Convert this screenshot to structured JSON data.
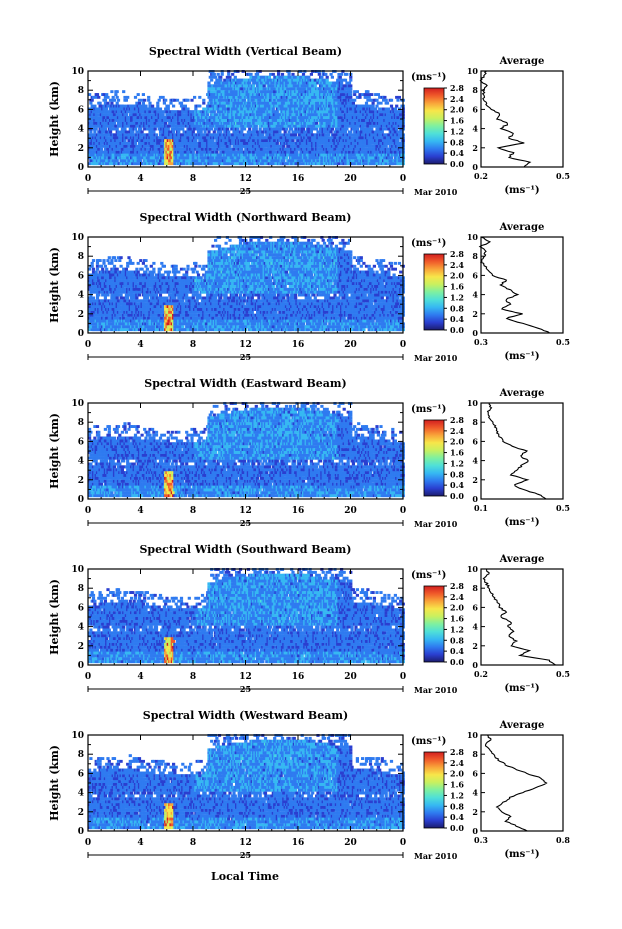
{
  "xlabel": "Local Time",
  "ylabel": "Height (km)",
  "date_day": "25",
  "date_month": "Mar 2010",
  "unit": "(ms⁻¹)",
  "avg_title": "Average",
  "avg_unit": "(ms⁻¹)",
  "colorbar_ticks": [
    "0.0",
    "0.4",
    "0.8",
    "1.2",
    "1.6",
    "2.0",
    "2.4",
    "2.8"
  ],
  "x_ticks": [
    "0",
    "4",
    "8",
    "12",
    "16",
    "20",
    "0"
  ],
  "y_ticks": [
    "0",
    "2",
    "4",
    "6",
    "8",
    "10"
  ],
  "colorscale": [
    "#1c1c6e",
    "#2a3fd0",
    "#2f7bf0",
    "#36b8f2",
    "#4fe0d8",
    "#7ef0a0",
    "#c8f060",
    "#f7e64a",
    "#f9a43a",
    "#f05a2a",
    "#d21f1f"
  ],
  "chart_data": [
    {
      "type": "heatmap",
      "title": "Spectral Width (Vertical Beam)",
      "ylim": [
        0,
        10
      ],
      "xlim": [
        0,
        24
      ],
      "avg": {
        "xlim": [
          0.2,
          0.5
        ],
        "x_ticks": [
          "0.2",
          "0.5"
        ],
        "height": [
          0,
          0.5,
          1,
          1.5,
          2,
          2.5,
          3,
          3.5,
          4,
          4.5,
          5,
          5.5,
          6,
          6.5,
          7,
          7.5,
          8,
          8.5,
          9,
          9.5,
          10
        ],
        "value": [
          0.36,
          0.38,
          0.3,
          0.32,
          0.26,
          0.36,
          0.3,
          0.32,
          0.27,
          0.3,
          0.26,
          0.27,
          0.24,
          0.22,
          0.21,
          0.21,
          0.21,
          0.22,
          0.2,
          0.21,
          0.22
        ]
      }
    },
    {
      "type": "heatmap",
      "title": "Spectral Width (Northward Beam)",
      "ylim": [
        0,
        10
      ],
      "xlim": [
        0,
        24
      ],
      "avg": {
        "xlim": [
          0.3,
          0.5
        ],
        "x_ticks": [
          "0.3",
          "0.5"
        ],
        "height": [
          0,
          0.5,
          1,
          1.5,
          2,
          2.5,
          3,
          3.5,
          4,
          4.5,
          5,
          5.5,
          6,
          6.5,
          7,
          7.5,
          8,
          8.5,
          9,
          9.5,
          10
        ],
        "value": [
          0.47,
          0.44,
          0.4,
          0.36,
          0.4,
          0.35,
          0.37,
          0.36,
          0.39,
          0.37,
          0.35,
          0.36,
          0.33,
          0.32,
          0.31,
          0.3,
          0.31,
          0.31,
          0.3,
          0.32,
          0.3
        ]
      }
    },
    {
      "type": "heatmap",
      "title": "Spectral Width (Eastward Beam)",
      "ylim": [
        0,
        10
      ],
      "xlim": [
        0,
        24
      ],
      "avg": {
        "xlim": [
          0.1,
          0.5
        ],
        "x_ticks": [
          "0.1",
          "0.5"
        ],
        "height": [
          0,
          0.5,
          1,
          1.5,
          2,
          2.5,
          3,
          3.5,
          4,
          4.5,
          5,
          5.5,
          6,
          6.5,
          7,
          7.5,
          8,
          8.5,
          9,
          9.5,
          10
        ],
        "value": [
          0.42,
          0.38,
          0.3,
          0.26,
          0.33,
          0.25,
          0.27,
          0.3,
          0.33,
          0.29,
          0.32,
          0.25,
          0.21,
          0.19,
          0.18,
          0.17,
          0.16,
          0.14,
          0.13,
          0.15,
          0.14
        ]
      }
    },
    {
      "type": "heatmap",
      "title": "Spectral Width (Southward Beam)",
      "ylim": [
        0,
        10
      ],
      "xlim": [
        0,
        24
      ],
      "avg": {
        "xlim": [
          0.2,
          0.5
        ],
        "x_ticks": [
          "0.2",
          "0.5"
        ],
        "height": [
          0,
          0.5,
          1,
          1.5,
          2,
          2.5,
          3,
          3.5,
          4,
          4.5,
          5,
          5.5,
          6,
          6.5,
          7,
          7.5,
          8,
          8.5,
          9,
          9.5,
          10
        ],
        "value": [
          0.47,
          0.45,
          0.34,
          0.38,
          0.31,
          0.33,
          0.3,
          0.32,
          0.3,
          0.31,
          0.27,
          0.29,
          0.27,
          0.26,
          0.25,
          0.24,
          0.23,
          0.22,
          0.21,
          0.23,
          0.22
        ]
      }
    },
    {
      "type": "heatmap",
      "title": "Spectral Width (Westward Beam)",
      "ylim": [
        0,
        10
      ],
      "xlim": [
        0,
        24
      ],
      "avg": {
        "xlim": [
          0.3,
          0.8
        ],
        "x_ticks": [
          "0.3",
          "0.8"
        ],
        "height": [
          0,
          0.5,
          1,
          1.5,
          2,
          2.5,
          3,
          3.5,
          4,
          4.5,
          5,
          5.5,
          6,
          6.5,
          7,
          7.5,
          8,
          8.5,
          9,
          9.5,
          10
        ],
        "value": [
          0.58,
          0.52,
          0.45,
          0.48,
          0.43,
          0.4,
          0.44,
          0.48,
          0.55,
          0.63,
          0.7,
          0.67,
          0.58,
          0.5,
          0.44,
          0.4,
          0.37,
          0.35,
          0.33,
          0.36,
          0.34
        ]
      }
    }
  ]
}
